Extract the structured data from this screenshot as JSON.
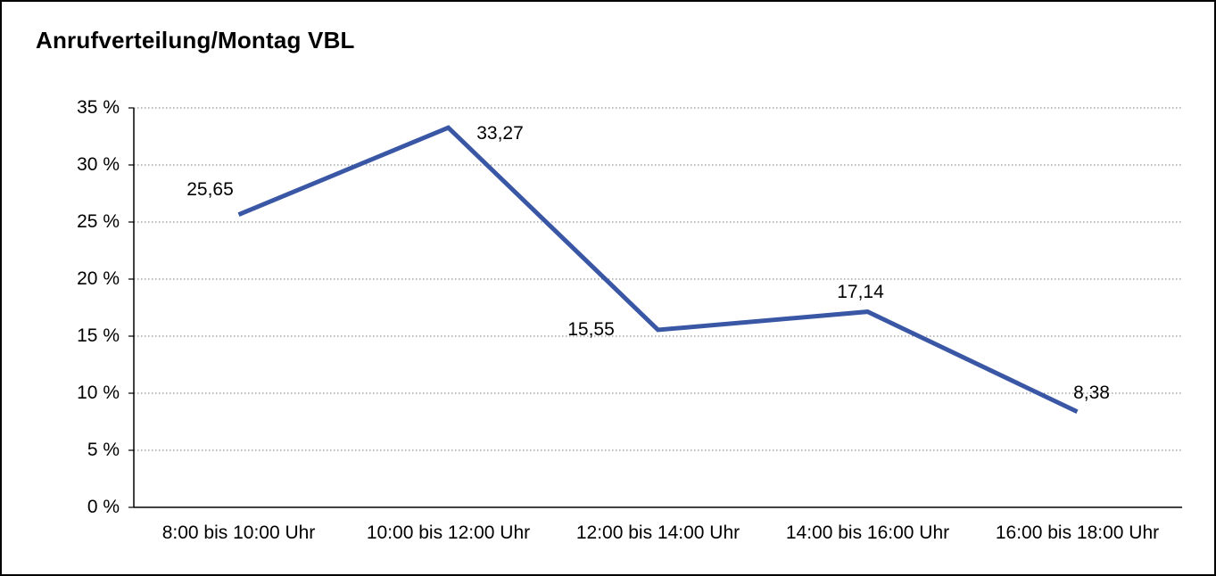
{
  "title": "Anrufverteilung/Montag VBL",
  "colors": {
    "line": "#3A57A6",
    "grid": "#7a7a7a",
    "axis": "#000000",
    "text": "#000000",
    "background": "#ffffff",
    "frame_border": "#000000"
  },
  "chart_data": {
    "type": "line",
    "title": "Anrufverteilung/Montag VBL",
    "categories": [
      "8:00 bis 10:00 Uhr",
      "10:00 bis 12:00 Uhr",
      "12:00 bis 14:00 Uhr",
      "14:00 bis 16:00 Uhr",
      "16:00 bis 18:00 Uhr"
    ],
    "values": [
      25.65,
      33.27,
      15.55,
      17.14,
      8.38
    ],
    "data_labels": [
      "25,65",
      "33,27",
      "15,55",
      "17,14",
      "8,38"
    ],
    "xlabel": "",
    "ylabel": "",
    "ylim": [
      0,
      35
    ],
    "y_tick_step": 5,
    "y_tick_labels": [
      "0 %",
      "5 %",
      "10 %",
      "15 %",
      "20 %",
      "25 %",
      "30 %",
      "35 %"
    ],
    "grid": "horizontal-dotted",
    "legend": "none",
    "markers": "none"
  }
}
